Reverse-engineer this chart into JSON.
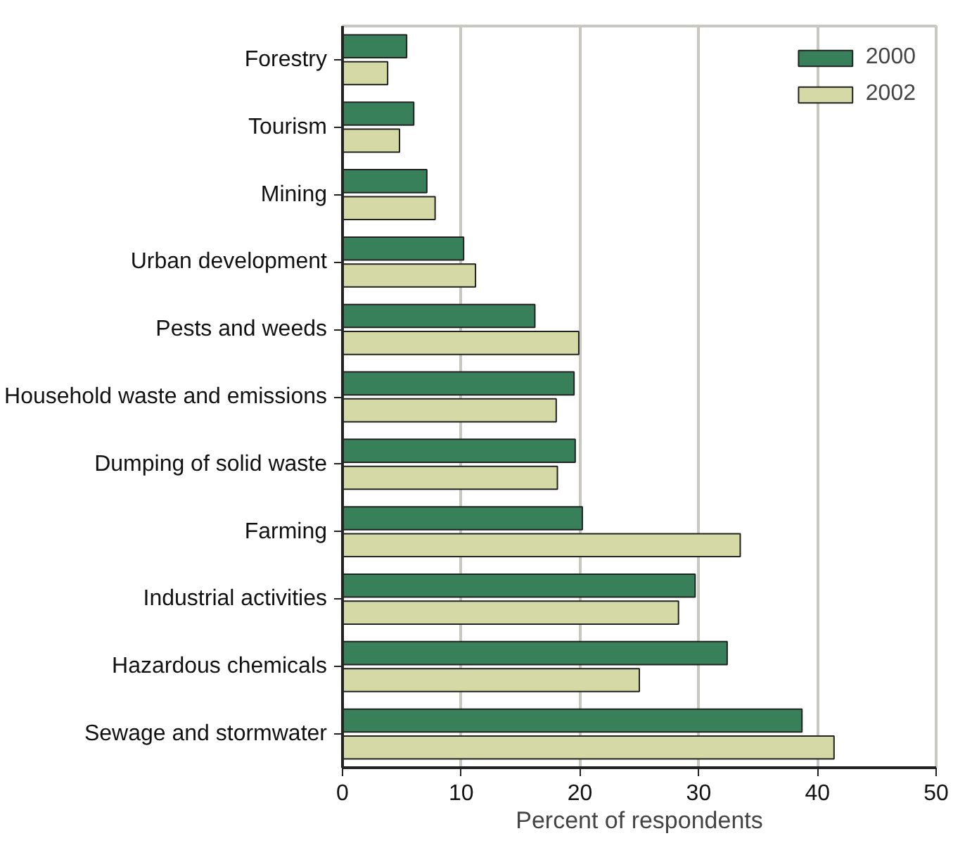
{
  "chart_data": {
    "type": "bar",
    "orientation": "horizontal",
    "xlabel": "Percent of respondents",
    "categories": [
      "Forestry",
      "Tourism",
      "Mining",
      "Urban development",
      "Pests and weeds",
      "Household waste and emissions",
      "Dumping of solid waste",
      "Farming",
      "Industrial activities",
      "Hazardous chemicals",
      "Sewage and stormwater"
    ],
    "series": [
      {
        "name": "2000",
        "color": "#38805a",
        "values": [
          5.4,
          6.0,
          7.1,
          10.2,
          16.2,
          19.5,
          19.6,
          20.2,
          29.7,
          32.4,
          38.7
        ]
      },
      {
        "name": "2002",
        "color": "#d5d9a5",
        "values": [
          3.8,
          4.8,
          7.8,
          11.2,
          19.9,
          18.0,
          18.1,
          33.5,
          28.3,
          25.0,
          41.4
        ]
      }
    ],
    "xlim": [
      0,
      50
    ],
    "xticks": [
      0,
      10,
      20,
      30,
      40,
      50
    ],
    "grid": "x",
    "legend": "top right"
  }
}
